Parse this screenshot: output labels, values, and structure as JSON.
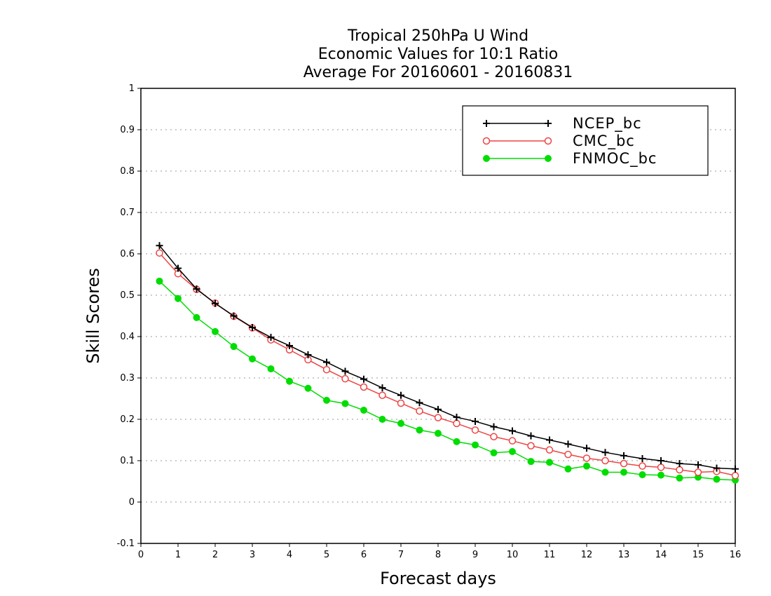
{
  "chart_data": {
    "type": "line",
    "title_lines": [
      "Tropical 250hPa U Wind",
      "Economic Values for 10:1 Ratio",
      "Average For 20160601 - 20160831"
    ],
    "xlabel": "Forecast days",
    "ylabel": "Skill Scores",
    "xlim": [
      0,
      16
    ],
    "ylim": [
      -0.1,
      1
    ],
    "xticks": [
      0,
      1,
      2,
      3,
      4,
      5,
      6,
      7,
      8,
      9,
      10,
      11,
      12,
      13,
      14,
      15,
      16
    ],
    "yticks": [
      -0.1,
      0,
      0.1,
      0.2,
      0.3,
      0.4,
      0.5,
      0.6,
      0.7,
      0.8,
      0.9,
      1
    ],
    "ytick_labels": [
      "-0.1",
      "0",
      "0.1",
      "0.2",
      "0.3",
      "0.4",
      "0.5",
      "0.6",
      "0.7",
      "0.8",
      "0.9",
      "1"
    ],
    "grid": "horizontal dotted",
    "legend_position": "top-right",
    "x": [
      0.5,
      1,
      1.5,
      2,
      2.5,
      3,
      3.5,
      4,
      4.5,
      5,
      5.5,
      6,
      6.5,
      7,
      7.5,
      8,
      8.5,
      9,
      9.5,
      10,
      10.5,
      11,
      11.5,
      12,
      12.5,
      13,
      13.5,
      14,
      14.5,
      15,
      15.5,
      16
    ],
    "series": [
      {
        "name": "NCEP_bc",
        "color": "#000000",
        "marker": "plus",
        "values": [
          0.62,
          0.565,
          0.515,
          0.48,
          0.45,
          0.422,
          0.398,
          0.378,
          0.356,
          0.338,
          0.316,
          0.297,
          0.276,
          0.258,
          0.24,
          0.224,
          0.205,
          0.195,
          0.182,
          0.172,
          0.16,
          0.15,
          0.14,
          0.13,
          0.12,
          0.112,
          0.105,
          0.1,
          0.093,
          0.09,
          0.082,
          0.08
        ]
      },
      {
        "name": "CMC_bc",
        "color": "#ee4444",
        "marker": "open-circle",
        "values": [
          0.602,
          0.552,
          0.514,
          0.481,
          0.449,
          0.421,
          0.392,
          0.368,
          0.344,
          0.32,
          0.298,
          0.278,
          0.258,
          0.239,
          0.22,
          0.204,
          0.19,
          0.174,
          0.158,
          0.148,
          0.136,
          0.126,
          0.115,
          0.106,
          0.1,
          0.093,
          0.087,
          0.084,
          0.078,
          0.072,
          0.074,
          0.064
        ]
      },
      {
        "name": "FNMOC_bc",
        "color": "#00dd00",
        "marker": "filled-circle",
        "values": [
          0.534,
          0.492,
          0.446,
          0.412,
          0.376,
          0.346,
          0.322,
          0.292,
          0.275,
          0.246,
          0.238,
          0.222,
          0.2,
          0.19,
          0.174,
          0.166,
          0.146,
          0.138,
          0.119,
          0.122,
          0.098,
          0.096,
          0.08,
          0.087,
          0.072,
          0.072,
          0.066,
          0.065,
          0.058,
          0.06,
          0.055,
          0.053
        ]
      }
    ]
  }
}
